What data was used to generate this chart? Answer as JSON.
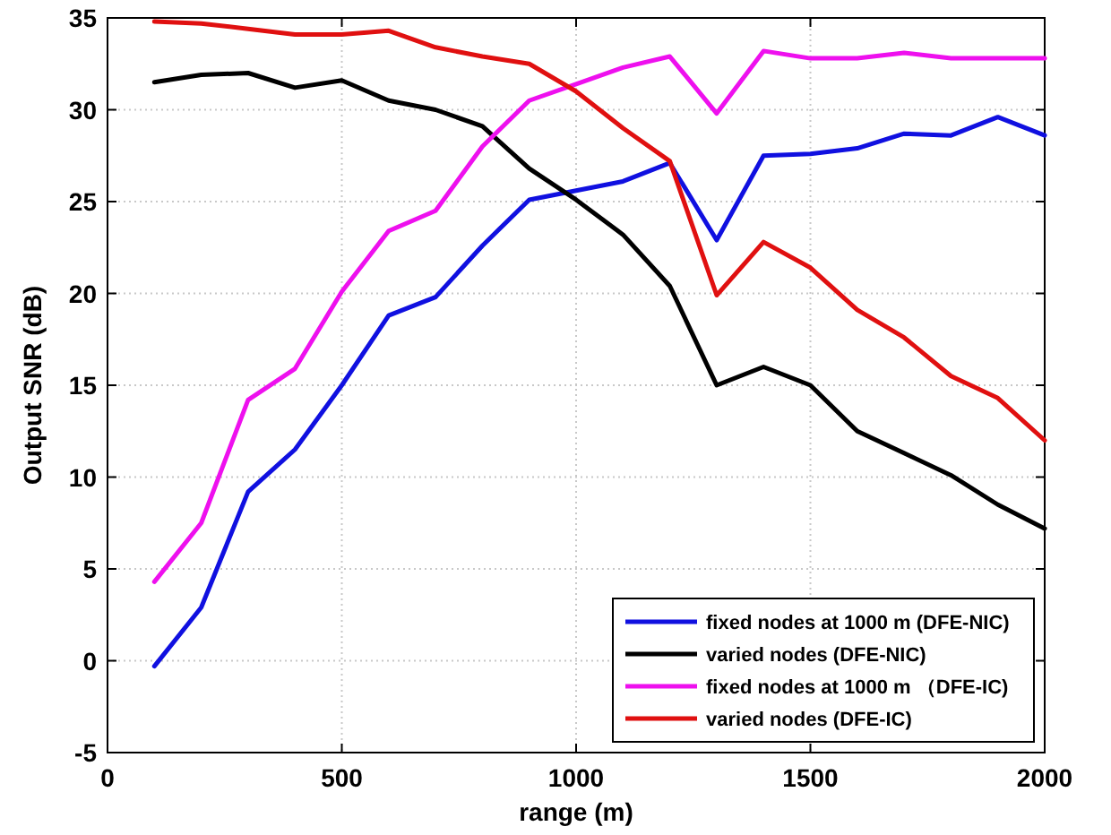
{
  "chart_data": {
    "type": "line",
    "xlabel": "range (m)",
    "ylabel": "Output SNR (dB)",
    "x": [
      100,
      200,
      300,
      400,
      500,
      600,
      700,
      800,
      900,
      1000,
      1100,
      1200,
      1300,
      1400,
      1500,
      1600,
      1700,
      1800,
      1900,
      2000
    ],
    "xlim": [
      0,
      2000
    ],
    "xticks": [
      0,
      500,
      1000,
      1500,
      2000
    ],
    "ylim": [
      -5,
      35
    ],
    "yticks": [
      -5,
      0,
      5,
      10,
      15,
      20,
      25,
      30,
      35
    ],
    "grid": true,
    "legend": "bottom right",
    "series": [
      {
        "name": "fixed nodes at 1000 m (DFE-NIC)",
        "color": "#1010e0",
        "values": [
          -0.3,
          2.9,
          9.2,
          11.5,
          15,
          18.8,
          19.8,
          22.6,
          25.1,
          25.6,
          26.1,
          27.1,
          22.9,
          27.5,
          27.6,
          27.9,
          28.7,
          28.6,
          29.6,
          28.6
        ]
      },
      {
        "name": "varied nodes (DFE-NIC)",
        "color": "#000000",
        "values": [
          31.5,
          31.9,
          32.0,
          31.2,
          31.6,
          30.5,
          30.0,
          29.1,
          26.8,
          25.1,
          23.2,
          20.4,
          15.0,
          16.0,
          15.0,
          12.5,
          11.3,
          10.1,
          8.5,
          7.2
        ]
      },
      {
        "name": "fixed nodes at 1000 m （DFE-IC)",
        "color": "#ee10ee",
        "values": [
          4.3,
          7.5,
          14.2,
          15.9,
          20.1,
          23.4,
          24.5,
          28.0,
          30.5,
          31.4,
          32.3,
          32.9,
          29.8,
          33.2,
          32.8,
          32.8,
          33.1,
          32.8,
          32.8,
          32.8
        ]
      },
      {
        "name": "varied nodes (DFE-IC)",
        "color": "#e01010",
        "values": [
          34.8,
          34.7,
          34.4,
          34.1,
          34.1,
          34.3,
          33.4,
          32.9,
          32.5,
          31.0,
          29.0,
          27.2,
          19.9,
          22.8,
          21.4,
          19.1,
          17.6,
          15.5,
          14.3,
          12.0
        ]
      }
    ]
  }
}
